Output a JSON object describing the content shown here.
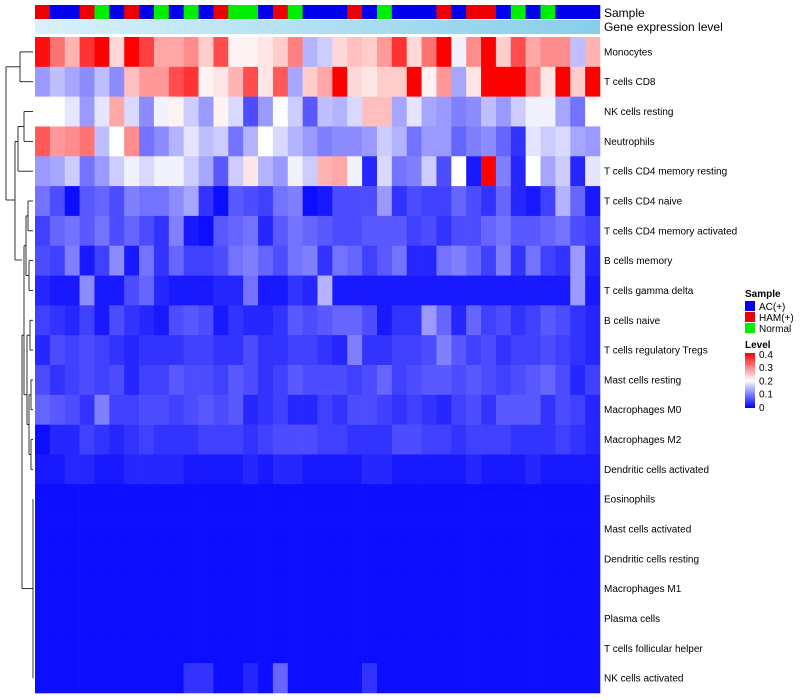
{
  "chart_data": {
    "type": "heatmap",
    "title": "",
    "annotation_rows": [
      "Sample",
      "Gene expression level"
    ],
    "rows": [
      "Monocytes",
      "T cells CD8",
      "NK cells resting",
      "Neutrophils",
      "T cells CD4 memory resting",
      "T cells CD4 naive",
      "T cells CD4 memory activated",
      "B cells memory",
      "T cells gamma delta",
      "B cells naive",
      "T cells regulatory  Tregs",
      "Mast cells resting",
      "Macrophages M0",
      "Macrophages M2",
      "Dendritic cells activated",
      "Eosinophils",
      "Mast cells activated",
      "Dendritic cells resting",
      "Macrophages M1",
      "Plasma cells",
      "T cells follicular helper",
      "NK cells activated"
    ],
    "sample_groups": [
      "HAM(+)",
      "AC(+)",
      "AC(+)",
      "HAM(+)",
      "Normal",
      "AC(+)",
      "HAM(+)",
      "AC(+)",
      "Normal",
      "AC(+)",
      "Normal",
      "AC(+)",
      "HAM(+)",
      "Normal",
      "Normal",
      "AC(+)",
      "HAM(+)",
      "Normal",
      "AC(+)",
      "AC(+)",
      "AC(+)",
      "HAM(+)",
      "AC(+)",
      "Normal",
      "AC(+)",
      "AC(+)",
      "AC(+)",
      "HAM(+)",
      "AC(+)",
      "HAM(+)",
      "HAM(+)",
      "AC(+)",
      "Normal",
      "AC(+)",
      "Normal",
      "AC(+)",
      "AC(+)",
      "AC(+)"
    ],
    "values": [
      [
        0.39,
        0.31,
        0.26,
        0.36,
        0.4,
        0.23,
        0.4,
        0.35,
        0.27,
        0.27,
        0.29,
        0.24,
        0.34,
        0.21,
        0.21,
        0.22,
        0.24,
        0.3,
        0.14,
        0.16,
        0.23,
        0.25,
        0.24,
        0.28,
        0.36,
        0.23,
        0.31,
        0.4,
        0.19,
        0.29,
        0.4,
        0.24,
        0.34,
        0.27,
        0.29,
        0.29,
        0.15,
        0.26
      ],
      [
        0.12,
        0.15,
        0.13,
        0.11,
        0.15,
        0.11,
        0.25,
        0.28,
        0.28,
        0.34,
        0.36,
        0.21,
        0.22,
        0.26,
        0.34,
        0.22,
        0.33,
        0.13,
        0.24,
        0.27,
        0.4,
        0.23,
        0.22,
        0.24,
        0.24,
        0.4,
        0.21,
        0.28,
        0.13,
        0.22,
        0.4,
        0.4,
        0.4,
        0.3,
        0.22,
        0.4,
        0.24,
        0.4
      ],
      [
        0.2,
        0.2,
        0.18,
        0.12,
        0.18,
        0.27,
        0.17,
        0.11,
        0.19,
        0.21,
        0.16,
        0.12,
        0.21,
        0.17,
        0.06,
        0.12,
        0.2,
        0.16,
        0.07,
        0.15,
        0.14,
        0.17,
        0.25,
        0.25,
        0.13,
        0.18,
        0.13,
        0.12,
        0.1,
        0.11,
        0.15,
        0.12,
        0.16,
        0.19,
        0.19,
        0.13,
        0.09,
        0.2
      ],
      [
        0.33,
        0.28,
        0.29,
        0.31,
        0.15,
        0.2,
        0.29,
        0.09,
        0.11,
        0.14,
        0.18,
        0.15,
        0.16,
        0.09,
        0.14,
        0.2,
        0.17,
        0.14,
        0.12,
        0.1,
        0.11,
        0.11,
        0.12,
        0.16,
        0.14,
        0.09,
        0.12,
        0.12,
        0.08,
        0.1,
        0.11,
        0.08,
        0.04,
        0.18,
        0.16,
        0.17,
        0.13,
        0.12
      ],
      [
        0.12,
        0.13,
        0.16,
        0.09,
        0.12,
        0.16,
        0.19,
        0.17,
        0.19,
        0.19,
        0.16,
        0.13,
        0.07,
        0.16,
        0.22,
        0.14,
        0.12,
        0.19,
        0.16,
        0.26,
        0.27,
        0.19,
        0.03,
        0.17,
        0.09,
        0.1,
        0.16,
        0.06,
        0.2,
        0.02,
        0.4,
        0.1,
        0.03,
        0.2,
        0.13,
        0.16,
        0.03,
        0.18
      ],
      [
        0.09,
        0.06,
        0.01,
        0.07,
        0.08,
        0.06,
        0.1,
        0.09,
        0.09,
        0.11,
        0.13,
        0.04,
        0.01,
        0.07,
        0.06,
        0.05,
        0.09,
        0.1,
        0.01,
        0.02,
        0.06,
        0.06,
        0.06,
        0.12,
        0.04,
        0.06,
        0.05,
        0.05,
        0.08,
        0.06,
        0.04,
        0.08,
        0.03,
        0.02,
        0.05,
        0.14,
        0.08,
        0.02
      ],
      [
        0.05,
        0.08,
        0.09,
        0.07,
        0.09,
        0.06,
        0.08,
        0.06,
        0.04,
        0.1,
        0.02,
        0.01,
        0.07,
        0.08,
        0.09,
        0.03,
        0.07,
        0.09,
        0.08,
        0.07,
        0.06,
        0.06,
        0.07,
        0.07,
        0.07,
        0.05,
        0.06,
        0.04,
        0.06,
        0.06,
        0.08,
        0.09,
        0.07,
        0.07,
        0.08,
        0.09,
        0.06,
        0.05
      ],
      [
        0.06,
        0.05,
        0.1,
        0.02,
        0.05,
        0.11,
        0.02,
        0.09,
        0.04,
        0.08,
        0.05,
        0.05,
        0.06,
        0.09,
        0.1,
        0.08,
        0.06,
        0.09,
        0.1,
        0.04,
        0.09,
        0.08,
        0.05,
        0.07,
        0.09,
        0.03,
        0.03,
        0.09,
        0.1,
        0.08,
        0.05,
        0.1,
        0.04,
        0.09,
        0.05,
        0.04,
        0.12,
        0.03
      ],
      [
        0.03,
        0.02,
        0.02,
        0.11,
        0.02,
        0.02,
        0.06,
        0.08,
        0.03,
        0.02,
        0.02,
        0.02,
        0.03,
        0.03,
        0.09,
        0.02,
        0.02,
        0.04,
        0.03,
        0.14,
        0.02,
        0.02,
        0.02,
        0.02,
        0.02,
        0.02,
        0.02,
        0.02,
        0.02,
        0.02,
        0.02,
        0.02,
        0.02,
        0.02,
        0.02,
        0.02,
        0.12,
        0.02
      ],
      [
        0.05,
        0.04,
        0.03,
        0.05,
        0.02,
        0.06,
        0.04,
        0.03,
        0.02,
        0.06,
        0.07,
        0.06,
        0.02,
        0.04,
        0.03,
        0.03,
        0.04,
        0.07,
        0.06,
        0.07,
        0.08,
        0.08,
        0.06,
        0.02,
        0.04,
        0.04,
        0.12,
        0.08,
        0.03,
        0.08,
        0.05,
        0.06,
        0.04,
        0.05,
        0.07,
        0.06,
        0.04,
        0.03
      ],
      [
        0.03,
        0.06,
        0.05,
        0.06,
        0.05,
        0.04,
        0.03,
        0.04,
        0.04,
        0.04,
        0.05,
        0.05,
        0.04,
        0.04,
        0.06,
        0.04,
        0.04,
        0.05,
        0.05,
        0.04,
        0.03,
        0.1,
        0.04,
        0.04,
        0.05,
        0.05,
        0.06,
        0.1,
        0.07,
        0.05,
        0.06,
        0.04,
        0.05,
        0.05,
        0.06,
        0.05,
        0.04,
        0.03
      ],
      [
        0.06,
        0.04,
        0.05,
        0.06,
        0.05,
        0.06,
        0.03,
        0.05,
        0.05,
        0.07,
        0.06,
        0.06,
        0.05,
        0.07,
        0.06,
        0.04,
        0.05,
        0.07,
        0.06,
        0.06,
        0.06,
        0.05,
        0.06,
        0.08,
        0.05,
        0.06,
        0.07,
        0.07,
        0.06,
        0.07,
        0.06,
        0.05,
        0.06,
        0.07,
        0.08,
        0.06,
        0.03,
        0.05
      ],
      [
        0.08,
        0.07,
        0.06,
        0.04,
        0.1,
        0.05,
        0.05,
        0.06,
        0.06,
        0.05,
        0.06,
        0.07,
        0.06,
        0.07,
        0.03,
        0.04,
        0.05,
        0.03,
        0.03,
        0.05,
        0.04,
        0.06,
        0.06,
        0.05,
        0.04,
        0.05,
        0.04,
        0.03,
        0.05,
        0.06,
        0.04,
        0.07,
        0.07,
        0.07,
        0.04,
        0.06,
        0.05,
        0.03
      ],
      [
        0.01,
        0.03,
        0.03,
        0.05,
        0.04,
        0.03,
        0.04,
        0.05,
        0.04,
        0.04,
        0.04,
        0.05,
        0.05,
        0.05,
        0.04,
        0.05,
        0.06,
        0.06,
        0.06,
        0.05,
        0.05,
        0.04,
        0.04,
        0.04,
        0.06,
        0.06,
        0.05,
        0.05,
        0.04,
        0.05,
        0.05,
        0.05,
        0.04,
        0.04,
        0.04,
        0.05,
        0.04,
        0.03
      ],
      [
        0.02,
        0.02,
        0.03,
        0.03,
        0.02,
        0.02,
        0.03,
        0.03,
        0.03,
        0.03,
        0.02,
        0.02,
        0.02,
        0.02,
        0.03,
        0.02,
        0.03,
        0.03,
        0.02,
        0.02,
        0.02,
        0.02,
        0.03,
        0.03,
        0.02,
        0.02,
        0.02,
        0.02,
        0.02,
        0.03,
        0.02,
        0.02,
        0.02,
        0.03,
        0.02,
        0.02,
        0.02,
        0.02
      ],
      [
        0.01,
        0.01,
        0.01,
        0.01,
        0.01,
        0.01,
        0.01,
        0.01,
        0.01,
        0.01,
        0.01,
        0.01,
        0.01,
        0.01,
        0.01,
        0.01,
        0.01,
        0.01,
        0.01,
        0.01,
        0.01,
        0.01,
        0.01,
        0.01,
        0.01,
        0.01,
        0.01,
        0.01,
        0.01,
        0.01,
        0.01,
        0.01,
        0.01,
        0.01,
        0.01,
        0.01,
        0.01,
        0.01
      ],
      [
        0.01,
        0.01,
        0.01,
        0.01,
        0.01,
        0.01,
        0.01,
        0.01,
        0.01,
        0.01,
        0.01,
        0.01,
        0.01,
        0.01,
        0.01,
        0.01,
        0.01,
        0.01,
        0.01,
        0.01,
        0.01,
        0.01,
        0.01,
        0.01,
        0.01,
        0.01,
        0.01,
        0.01,
        0.01,
        0.01,
        0.01,
        0.01,
        0.01,
        0.01,
        0.01,
        0.01,
        0.01,
        0.01
      ],
      [
        0.01,
        0.01,
        0.01,
        0.01,
        0.01,
        0.01,
        0.01,
        0.01,
        0.01,
        0.01,
        0.01,
        0.01,
        0.01,
        0.01,
        0.01,
        0.01,
        0.01,
        0.01,
        0.01,
        0.01,
        0.01,
        0.01,
        0.01,
        0.01,
        0.01,
        0.01,
        0.01,
        0.01,
        0.01,
        0.01,
        0.01,
        0.01,
        0.01,
        0.01,
        0.01,
        0.01,
        0.01,
        0.01
      ],
      [
        0.01,
        0.01,
        0.01,
        0.01,
        0.01,
        0.01,
        0.01,
        0.01,
        0.01,
        0.01,
        0.01,
        0.01,
        0.01,
        0.01,
        0.01,
        0.01,
        0.01,
        0.01,
        0.01,
        0.01,
        0.01,
        0.01,
        0.01,
        0.01,
        0.01,
        0.01,
        0.01,
        0.01,
        0.01,
        0.01,
        0.01,
        0.01,
        0.01,
        0.01,
        0.01,
        0.01,
        0.01,
        0.01
      ],
      [
        0.01,
        0.01,
        0.01,
        0.01,
        0.01,
        0.01,
        0.01,
        0.01,
        0.01,
        0.01,
        0.01,
        0.01,
        0.01,
        0.01,
        0.01,
        0.01,
        0.01,
        0.01,
        0.01,
        0.01,
        0.01,
        0.01,
        0.01,
        0.01,
        0.01,
        0.01,
        0.01,
        0.01,
        0.01,
        0.01,
        0.01,
        0.01,
        0.01,
        0.01,
        0.01,
        0.01,
        0.01,
        0.01
      ],
      [
        0.01,
        0.01,
        0.01,
        0.01,
        0.01,
        0.01,
        0.01,
        0.01,
        0.01,
        0.01,
        0.01,
        0.01,
        0.01,
        0.01,
        0.01,
        0.01,
        0.01,
        0.01,
        0.01,
        0.01,
        0.01,
        0.01,
        0.01,
        0.01,
        0.01,
        0.01,
        0.01,
        0.01,
        0.01,
        0.01,
        0.01,
        0.01,
        0.01,
        0.01,
        0.01,
        0.01,
        0.01,
        0.01
      ],
      [
        0.01,
        0.01,
        0.01,
        0.01,
        0.01,
        0.01,
        0.01,
        0.01,
        0.01,
        0.01,
        0.04,
        0.04,
        0.01,
        0.01,
        0.03,
        0.01,
        0.08,
        0.01,
        0.01,
        0.01,
        0.01,
        0.01,
        0.04,
        0.01,
        0.01,
        0.01,
        0.01,
        0.01,
        0.01,
        0.01,
        0.01,
        0.01,
        0.01,
        0.01,
        0.01,
        0.01,
        0.01,
        0.01
      ]
    ],
    "legend": {
      "sample_title": "Sample",
      "sample_items": [
        {
          "label": "AC(+)",
          "color": "#0000ee"
        },
        {
          "label": "HAM(+)",
          "color": "#ee0000"
        },
        {
          "label": "Normal",
          "color": "#00ee00"
        }
      ],
      "level_title": "Level",
      "level_ticks": [
        "0.4",
        "0.3",
        "0.2",
        "0.1",
        "0"
      ],
      "level_range": [
        0,
        0.4
      ],
      "level_colors": {
        "low": "#0000ff",
        "mid": "#ffffff",
        "high": "#ff0000"
      }
    },
    "gene_expression_color": "#87ceeb"
  }
}
